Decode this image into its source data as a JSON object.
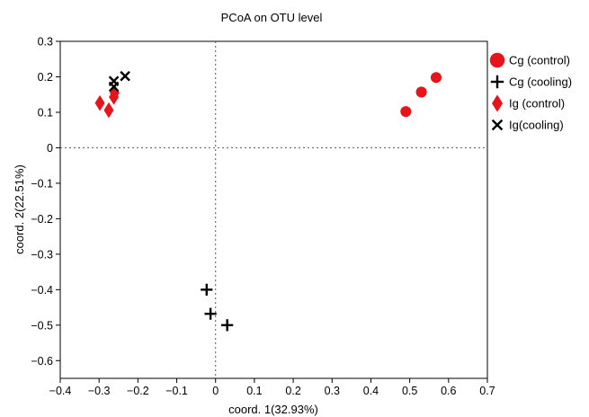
{
  "chart_data": {
    "type": "scatter",
    "title": "PCoA on OTU level",
    "xlabel": "coord. 1(32.93%)",
    "ylabel": "coord. 2(22.51%)",
    "xlim": [
      -0.4,
      0.7
    ],
    "ylim": [
      -0.65,
      0.3
    ],
    "x_ticks": [
      -0.4,
      -0.3,
      -0.2,
      -0.1,
      0,
      0.1,
      0.2,
      0.3,
      0.4,
      0.5,
      0.6,
      0.7
    ],
    "y_ticks": [
      0.3,
      0.2,
      0.1,
      0,
      -0.1,
      -0.2,
      -0.3,
      -0.4,
      -0.5,
      -0.6
    ],
    "x_tick_labels": [
      "−0.4",
      "−0.3",
      "−0.2",
      "−0.1",
      "0",
      "0.1",
      "0.2",
      "0.3",
      "0.4",
      "0.5",
      "0.6",
      "0.7"
    ],
    "y_tick_labels": [
      "0.3",
      "0.2",
      "0.1",
      "0",
      "−0.1",
      "−0.2",
      "−0.3",
      "−0.4",
      "−0.5",
      "−0.6"
    ],
    "reference_lines": {
      "x": 0,
      "y": 0,
      "style": "dotted"
    },
    "grid": false,
    "legend_position": "right",
    "series": [
      {
        "name": "Cg (control)",
        "marker": "circle",
        "color": "#e8141c",
        "points": [
          [
            0.49,
            0.102
          ],
          [
            0.53,
            0.157
          ],
          [
            0.568,
            0.198
          ]
        ]
      },
      {
        "name": "Cg (cooling)",
        "marker": "plus",
        "color": "#000000",
        "points": [
          [
            -0.023,
            -0.4
          ],
          [
            -0.013,
            -0.468
          ],
          [
            0.03,
            -0.5
          ]
        ]
      },
      {
        "name": "Ig (control)",
        "marker": "diamond",
        "color": "#e8141c",
        "points": [
          [
            -0.298,
            0.126
          ],
          [
            -0.275,
            0.106
          ],
          [
            -0.262,
            0.143
          ],
          [
            -0.26,
            0.155
          ]
        ]
      },
      {
        "name": "Ig(cooling)",
        "marker": "x",
        "color": "#000000",
        "points": [
          [
            -0.262,
            0.188
          ],
          [
            -0.262,
            0.172
          ],
          [
            -0.233,
            0.202
          ]
        ]
      }
    ]
  }
}
